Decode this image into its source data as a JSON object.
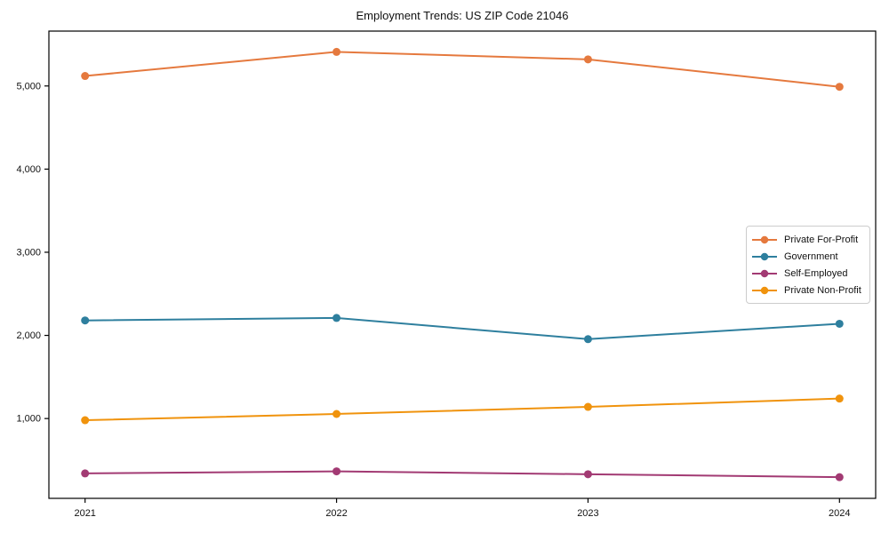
{
  "chart_data": {
    "type": "line",
    "title": "Employment Trends: US ZIP Code 21046",
    "categories": [
      "2021",
      "2022",
      "2023",
      "2024"
    ],
    "series": [
      {
        "name": "Private For-Profit",
        "color": "#E5793E",
        "values": [
          5120,
          5410,
          5320,
          4990
        ]
      },
      {
        "name": "Government",
        "color": "#2E7F9E",
        "values": [
          2180,
          2210,
          1955,
          2140
        ]
      },
      {
        "name": "Self-Employed",
        "color": "#A23A73",
        "values": [
          340,
          365,
          330,
          295
        ]
      },
      {
        "name": "Private Non-Profit",
        "color": "#F0930D",
        "values": [
          980,
          1055,
          1140,
          1240
        ]
      }
    ],
    "xlabel": "",
    "ylabel": "",
    "ylim": [
      40,
      5660
    ],
    "yticks": [
      1000,
      2000,
      3000,
      4000,
      5000
    ],
    "ytick_labels": [
      "1,000",
      "2,000",
      "3,000",
      "4,000",
      "5,000"
    ],
    "grid": false,
    "legend_position": "center-right",
    "marker": "circle",
    "axis_color": "#000000",
    "text_color": "#111111"
  }
}
